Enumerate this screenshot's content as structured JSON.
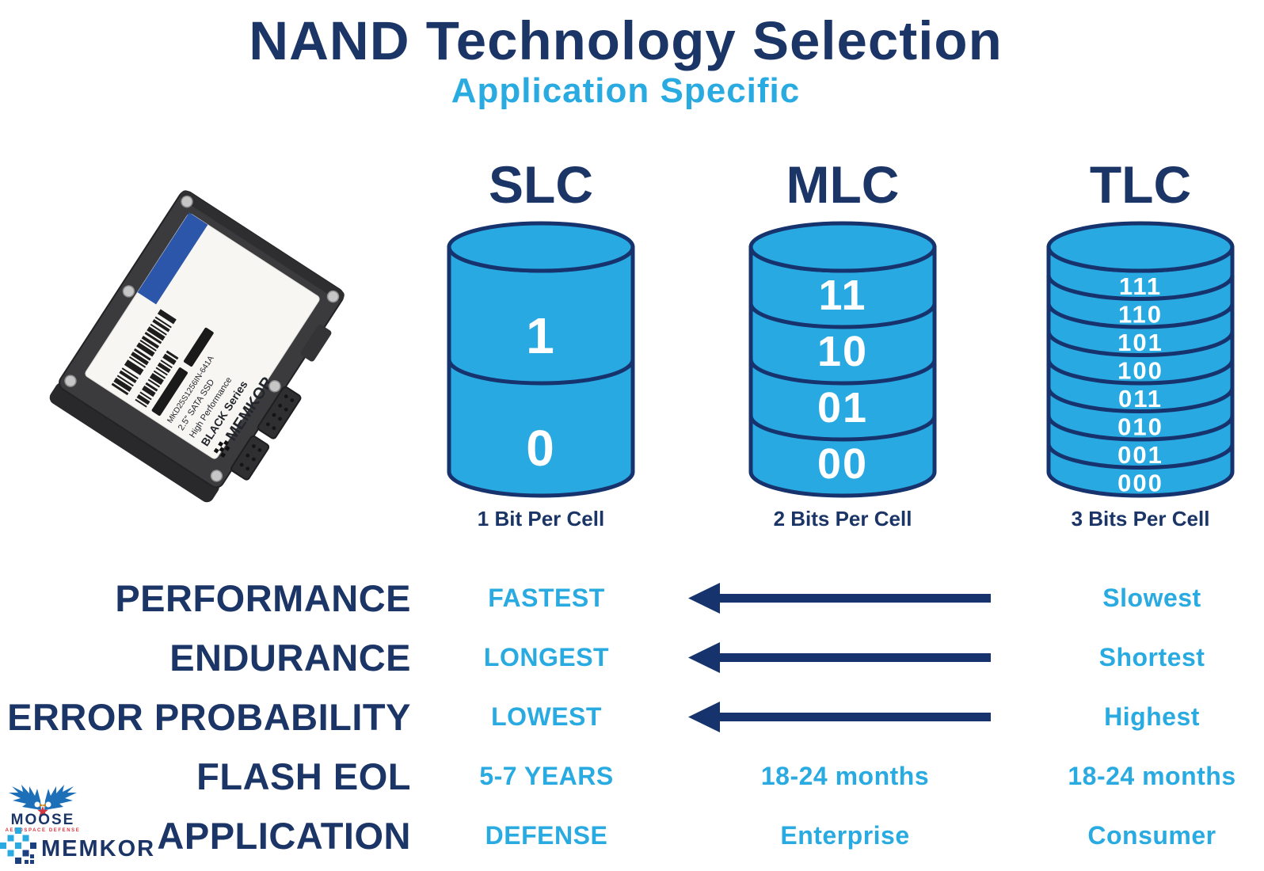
{
  "title": "NAND Technology Selection",
  "subtitle": "Application Specific",
  "colors": {
    "navy": "#1C3567",
    "accent_blue": "#29ABE2",
    "cylinder_fill": "#29A9E1",
    "cylinder_outline": "#16336E",
    "moose_blue": "#1D6FB8",
    "moose_red": "#D6373F",
    "memkor_dark_blue": "#1B3F7F"
  },
  "nand_types": [
    {
      "name": "SLC",
      "bits_per_cell_label": "1 Bit Per Cell",
      "segments": [
        "1",
        "0"
      ]
    },
    {
      "name": "MLC",
      "bits_per_cell_label": "2 Bits Per Cell",
      "segments": [
        "11",
        "10",
        "01",
        "00"
      ]
    },
    {
      "name": "TLC",
      "bits_per_cell_label": "3 Bits Per Cell",
      "segments": [
        "111",
        "110",
        "101",
        "100",
        "011",
        "010",
        "001",
        "000"
      ]
    }
  ],
  "comparison": {
    "rows": [
      {
        "label": "PERFORMANCE",
        "slc": "FASTEST",
        "mlc": "",
        "tlc": "Slowest",
        "arrow": true
      },
      {
        "label": "ENDURANCE",
        "slc": "LONGEST",
        "mlc": "",
        "tlc": "Shortest",
        "arrow": true
      },
      {
        "label": "ERROR PROBABILITY",
        "slc": "LOWEST",
        "mlc": "",
        "tlc": "Highest",
        "arrow": true
      },
      {
        "label": "FLASH EOL",
        "slc": "5-7 YEARS",
        "mlc": "18-24 months",
        "tlc": "18-24 months",
        "arrow": false
      },
      {
        "label": "APPLICATION",
        "slc": "DEFENSE",
        "mlc": "Enterprise",
        "tlc": "Consumer",
        "arrow": false
      }
    ]
  },
  "ssd_label": {
    "brand": "MEMKOR",
    "series": "BLACK Series",
    "line1": "High Performance",
    "line2": "2.5\" SATA SSD",
    "part_number": "MKD25S1256IN-641A"
  },
  "logos": {
    "moose": {
      "name": "MOOSE",
      "tagline": "AEROSPACE DEFENSE"
    },
    "memkor": {
      "name": "MEMKOR"
    }
  }
}
